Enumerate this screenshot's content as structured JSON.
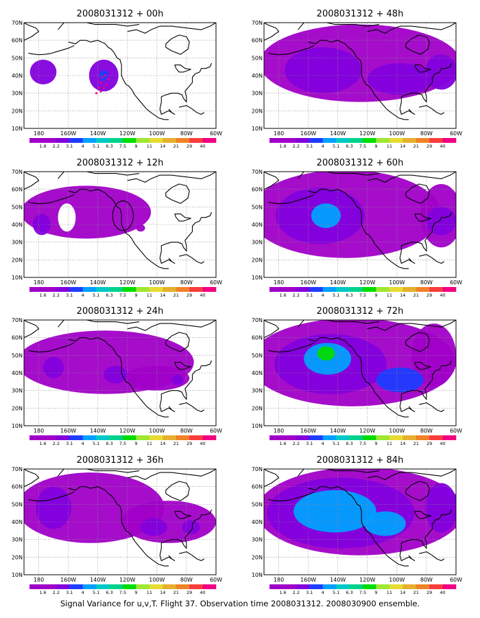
{
  "caption": "Signal Variance for u,v,T. Flight 37. Observation time 2008031312. 2008030900 ensemble.",
  "map": {
    "lat_range": [
      10,
      70
    ],
    "lon_range": [
      170,
      300
    ],
    "lat_labels": [
      "70N",
      "60N",
      "50N",
      "40N",
      "30N",
      "20N",
      "10N"
    ],
    "lat_values": [
      70,
      60,
      50,
      40,
      30,
      20,
      10
    ],
    "lon_labels": [
      "180",
      "160W",
      "140W",
      "120W",
      "100W",
      "80W",
      "60W"
    ],
    "lon_values": [
      180,
      200,
      220,
      240,
      260,
      280,
      300
    ]
  },
  "colorbar": {
    "levels": [
      "1.6",
      "2.2",
      "3.1",
      "4",
      "5.1",
      "6.3",
      "7.5",
      "9",
      "11",
      "14",
      "21",
      "29",
      "40"
    ],
    "colors": [
      "#a000c8",
      "#8200dc",
      "#1e3cff",
      "#00a0ff",
      "#00c8c8",
      "#00d28c",
      "#00dc00",
      "#a0e632",
      "#e6dc32",
      "#e6af2d",
      "#f08228",
      "#fa3c3c",
      "#f00082"
    ]
  },
  "panels": [
    {
      "id": "p00",
      "title": "2008031312 + 00h",
      "lead_hours": 0,
      "shading": [
        {
          "lon": 183,
          "lat": 42,
          "rx": 9,
          "ry": 7,
          "level": 1
        },
        {
          "lon": 224,
          "lat": 40,
          "rx": 10,
          "ry": 9,
          "level": 1
        },
        {
          "lon": 224,
          "lat": 40,
          "rx": 3,
          "ry": 3,
          "level": 2
        }
      ],
      "track": [
        [
          219,
          30
        ],
        [
          221,
          33
        ],
        [
          222,
          36
        ],
        [
          223,
          39
        ],
        [
          225,
          40
        ],
        [
          227,
          38
        ],
        [
          226,
          35
        ],
        [
          224,
          33
        ],
        [
          222,
          31
        ]
      ]
    },
    {
      "id": "p48",
      "title": "2008031312 + 48h",
      "lead_hours": 48,
      "shading": [
        {
          "lon": 235,
          "lat": 47,
          "rx": 68,
          "ry": 22,
          "level": 0
        },
        {
          "lon": 210,
          "lat": 43,
          "rx": 26,
          "ry": 13,
          "level": 1
        },
        {
          "lon": 262,
          "lat": 38,
          "rx": 22,
          "ry": 9,
          "level": 1
        },
        {
          "lon": 290,
          "lat": 42,
          "rx": 11,
          "ry": 10,
          "level": 1
        }
      ]
    },
    {
      "id": "p12",
      "title": "2008031312 + 12h",
      "lead_hours": 12,
      "shading": [
        {
          "lon": 212,
          "lat": 47,
          "rx": 44,
          "ry": 15,
          "level": 0
        },
        {
          "lon": 182,
          "lat": 40,
          "rx": 6,
          "ry": 6,
          "level": 1
        },
        {
          "lon": 249,
          "lat": 38,
          "rx": 3,
          "ry": 2,
          "level": 0
        }
      ],
      "holes": [
        {
          "lon": 199,
          "lat": 44,
          "rx": 6,
          "ry": 8
        }
      ],
      "circle": {
        "lon": 237,
        "lat": 45,
        "r_deg": 7
      }
    },
    {
      "id": "p60",
      "title": "2008031312 + 60h",
      "lead_hours": 60,
      "shading": [
        {
          "lon": 225,
          "lat": 46,
          "rx": 65,
          "ry": 25,
          "level": 0
        },
        {
          "lon": 290,
          "lat": 45,
          "rx": 14,
          "ry": 18,
          "level": 0
        },
        {
          "lon": 208,
          "lat": 45,
          "rx": 30,
          "ry": 16,
          "level": 1
        },
        {
          "lon": 212,
          "lat": 45,
          "rx": 10,
          "ry": 7,
          "level": 3
        },
        {
          "lon": 290,
          "lat": 42,
          "rx": 10,
          "ry": 8,
          "level": 1
        }
      ]
    },
    {
      "id": "p24",
      "title": "2008031312 + 24h",
      "lead_hours": 24,
      "shading": [
        {
          "lon": 225,
          "lat": 46,
          "rx": 60,
          "ry": 18,
          "level": 0
        },
        {
          "lon": 260,
          "lat": 37,
          "rx": 22,
          "ry": 7,
          "level": 0
        },
        {
          "lon": 190,
          "lat": 43,
          "rx": 7,
          "ry": 6,
          "level": 1
        },
        {
          "lon": 232,
          "lat": 39,
          "rx": 8,
          "ry": 5,
          "level": 1
        },
        {
          "lon": 274,
          "lat": 36,
          "rx": 4,
          "ry": 3,
          "level": 1
        }
      ]
    },
    {
      "id": "p72",
      "title": "2008031312 + 72h",
      "lead_hours": 72,
      "shading": [
        {
          "lon": 230,
          "lat": 46,
          "rx": 70,
          "ry": 25,
          "level": 0
        },
        {
          "lon": 285,
          "lat": 50,
          "rx": 15,
          "ry": 18,
          "level": 0
        },
        {
          "lon": 215,
          "lat": 45,
          "rx": 38,
          "ry": 17,
          "level": 1
        },
        {
          "lon": 213,
          "lat": 48,
          "rx": 16,
          "ry": 9,
          "level": 3
        },
        {
          "lon": 212,
          "lat": 51,
          "rx": 6,
          "ry": 4,
          "level": 6
        },
        {
          "lon": 262,
          "lat": 36,
          "rx": 16,
          "ry": 7,
          "level": 2
        }
      ]
    },
    {
      "id": "p36",
      "title": "2008031312 + 36h",
      "lead_hours": 36,
      "shading": [
        {
          "lon": 215,
          "lat": 48,
          "rx": 50,
          "ry": 20,
          "level": 0
        },
        {
          "lon": 268,
          "lat": 40,
          "rx": 32,
          "ry": 12,
          "level": 0
        },
        {
          "lon": 190,
          "lat": 48,
          "rx": 12,
          "ry": 12,
          "level": 1
        },
        {
          "lon": 258,
          "lat": 37,
          "rx": 9,
          "ry": 5,
          "level": 1
        },
        {
          "lon": 283,
          "lat": 37,
          "rx": 6,
          "ry": 4,
          "level": 1
        }
      ]
    },
    {
      "id": "p84",
      "title": "2008031312 + 84h",
      "lead_hours": 84,
      "shading": [
        {
          "lon": 235,
          "lat": 46,
          "rx": 70,
          "ry": 25,
          "level": 0
        },
        {
          "lon": 222,
          "lat": 45,
          "rx": 50,
          "ry": 20,
          "level": 1
        },
        {
          "lon": 218,
          "lat": 46,
          "rx": 28,
          "ry": 12,
          "level": 3
        },
        {
          "lon": 252,
          "lat": 39,
          "rx": 14,
          "ry": 7,
          "level": 3
        },
        {
          "lon": 290,
          "lat": 48,
          "rx": 11,
          "ry": 14,
          "level": 1
        }
      ]
    }
  ]
}
